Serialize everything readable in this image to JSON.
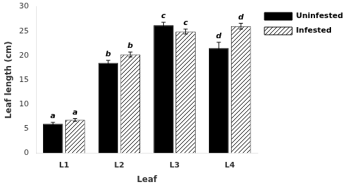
{
  "chart_data": {
    "type": "bar",
    "xlabel": "Leaf",
    "ylabel": "Leaf length (cm)",
    "categories": [
      "L1",
      "L2",
      "L3",
      "L4"
    ],
    "series": [
      {
        "name": "Uninfested",
        "color": "#000000",
        "values": [
          6.0,
          18.5,
          26.2,
          21.5
        ],
        "errors": [
          0.3,
          0.5,
          0.6,
          1.2
        ],
        "labels": [
          "a",
          "b",
          "c",
          "d"
        ]
      },
      {
        "name": "Infested",
        "color": "#ffffff",
        "values": [
          6.8,
          20.2,
          24.9,
          26.0
        ],
        "errors": [
          0.3,
          0.5,
          0.5,
          0.6
        ],
        "labels": [
          "a",
          "b",
          "c",
          "d"
        ]
      }
    ],
    "ylim": [
      0,
      30
    ],
    "yticks": [
      0,
      5,
      10,
      15,
      20,
      25,
      30
    ],
    "grid": false,
    "legend": "right"
  }
}
